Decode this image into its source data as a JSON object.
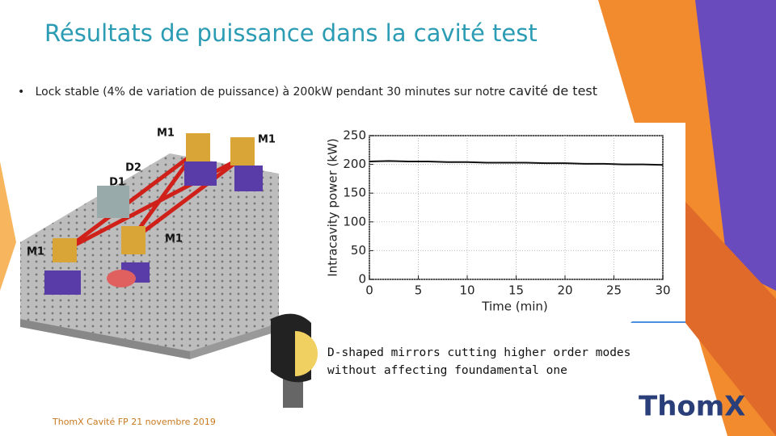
{
  "title": "Résultats de puissance dans la cavité test",
  "bullet": {
    "text": "Lock stable (4% de variation de puissance) à 200kW pendant 30 minutes sur notre",
    "emphasis": "cavité de test"
  },
  "setup_labels": [
    "M1",
    "M1",
    "D2",
    "D1",
    "M1",
    "M1"
  ],
  "caption": "D-shaped mirrors cutting higher order modes without affecting foundamental one",
  "footer": "ThomX Cavité FP 21 novembre 2019",
  "chart_data": {
    "type": "line",
    "x_label": "Time (min)",
    "y_label": "Intracavity power (kW)",
    "x": [
      0,
      2,
      4,
      6,
      8,
      10,
      12,
      14,
      16,
      18,
      20,
      22,
      24,
      26,
      28,
      30
    ],
    "series": [
      {
        "color": "#111111",
        "values": [
          205,
          206,
          205,
          205,
          204,
          204,
          203,
          203,
          203,
          202,
          202,
          201,
          201,
          200,
          200,
          199
        ]
      }
    ],
    "xlim": [
      0,
      30
    ],
    "xticks": [
      0,
      5,
      10,
      15,
      20,
      25,
      30
    ],
    "ylim": [
      0,
      250
    ],
    "yticks": [
      0,
      50,
      100,
      150,
      200,
      250
    ],
    "grid": true
  }
}
